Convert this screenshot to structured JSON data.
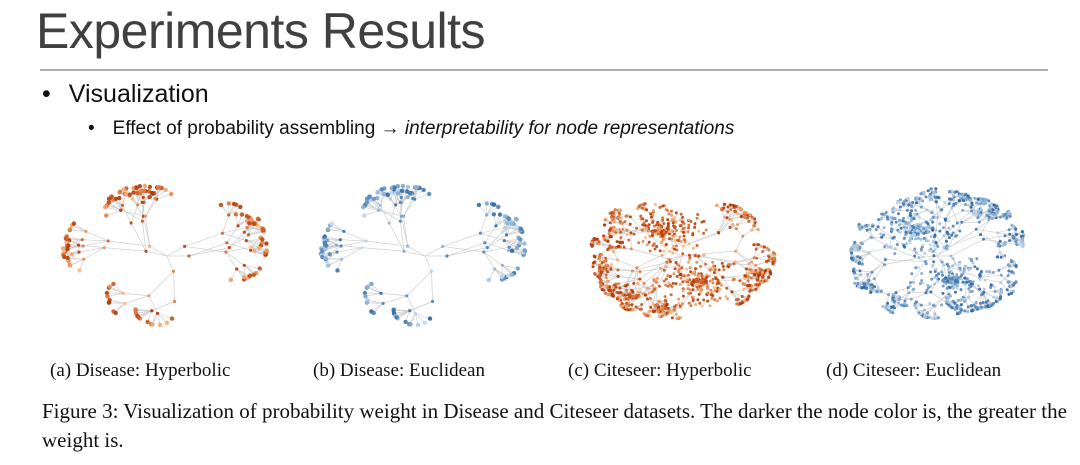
{
  "slide": {
    "title": "Experiments Results",
    "bullet": "Visualization",
    "sub_bullet_plain": "Effect of probability assembling",
    "sub_bullet_arrow": "→",
    "sub_bullet_italic": "interpretability for node representations"
  },
  "figure": {
    "panels": [
      {
        "label": "(a) Disease: Hyperbolic",
        "dataset": "Disease",
        "space": "Hyperbolic",
        "palette": "orange"
      },
      {
        "label": "(b) Disease: Euclidean",
        "dataset": "Disease",
        "space": "Euclidean",
        "palette": "blue"
      },
      {
        "label": "(c) Citeseer: Hyperbolic",
        "dataset": "Citeseer",
        "space": "Hyperbolic",
        "palette": "orange"
      },
      {
        "label": "(d) Citeseer: Euclidean",
        "dataset": "Citeseer",
        "space": "Euclidean",
        "palette": "blue"
      }
    ],
    "caption": "Figure 3: Visualization of probability weight in Disease and Citeseer datasets. The darker the node color is, the greater the weight is."
  },
  "colors": {
    "orange_dark": "#b33a05",
    "orange_light": "#fdbb84",
    "blue_dark": "#1f5f9e",
    "blue_light": "#c6dbef",
    "edge": "#cfcfcf"
  }
}
